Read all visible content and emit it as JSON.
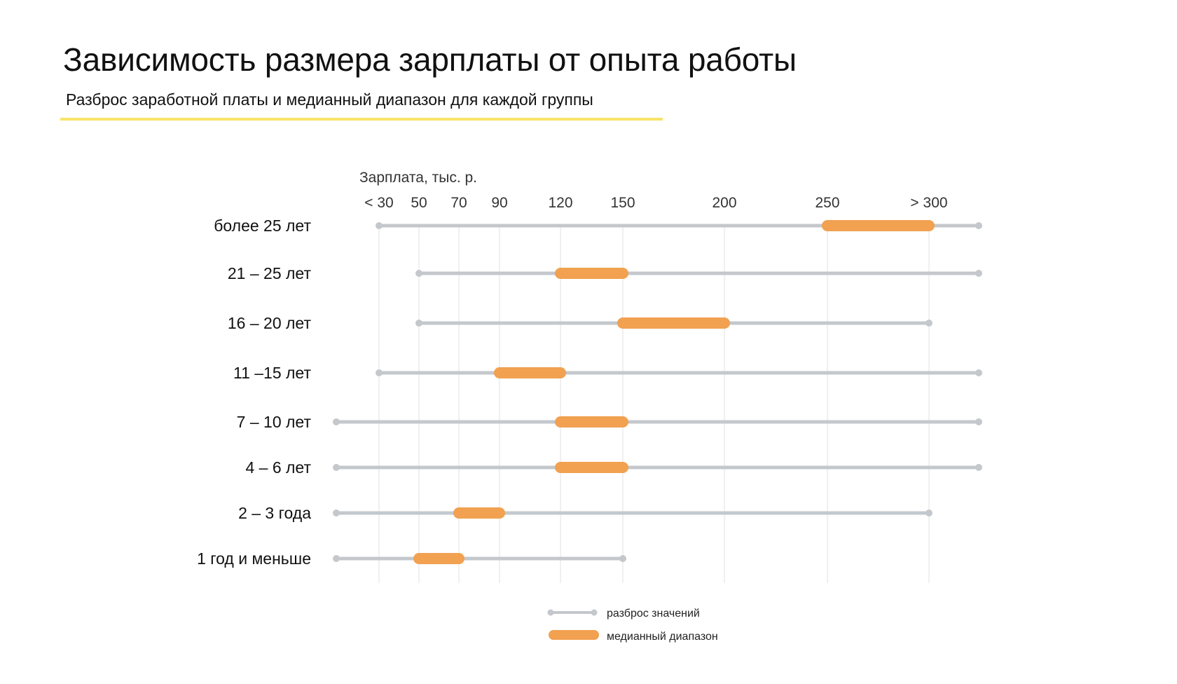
{
  "page": {
    "title": "Зависимость размера зарплаты от опыта работы",
    "subtitle": "Разброс заработной платы и медианный диапазон для каждой группы"
  },
  "chart_data": {
    "type": "range",
    "xlabel": "Зарплата, тыс. р.",
    "ticks": [
      {
        "label": "< 30",
        "value": 30
      },
      {
        "label": "50",
        "value": 50
      },
      {
        "label": "70",
        "value": 70
      },
      {
        "label": "90",
        "value": 90
      },
      {
        "label": "120",
        "value": 120
      },
      {
        "label": "150",
        "value": 150
      },
      {
        "label": "200",
        "value": 200
      },
      {
        "label": "250",
        "value": 250
      },
      {
        "label": "> 300",
        "value": 300
      }
    ],
    "grid": true,
    "legend": {
      "placement": "bottom",
      "items": [
        {
          "label": "разброс значений",
          "kind": "range",
          "color": "#c4c8cc"
        },
        {
          "label": "медианный диапазон",
          "kind": "median",
          "color": "#f1a150"
        }
      ]
    },
    "colors": {
      "range": "#c4c8cc",
      "median": "#f1a150",
      "grid": "#ececec"
    },
    "series": [
      {
        "label": "более 25 лет",
        "range": [
          30,
          350
        ],
        "median": [
          250,
          300
        ]
      },
      {
        "label": "21 – 25 лет",
        "range": [
          50,
          350
        ],
        "median": [
          120,
          150
        ]
      },
      {
        "label": "16 – 20 лет",
        "range": [
          50,
          300
        ],
        "median": [
          150,
          200
        ]
      },
      {
        "label": "11 –15 лет",
        "range": [
          30,
          350
        ],
        "median": [
          90,
          120
        ]
      },
      {
        "label": "7 – 10 лет",
        "range": [
          10,
          350
        ],
        "median": [
          120,
          150
        ]
      },
      {
        "label": "4 – 6 лет",
        "range": [
          10,
          350
        ],
        "median": [
          120,
          150
        ]
      },
      {
        "label": "2 – 3 года",
        "range": [
          10,
          300
        ],
        "median": [
          70,
          90
        ]
      },
      {
        "label": "1 год и меньше",
        "range": [
          10,
          150
        ],
        "median": [
          50,
          70
        ]
      }
    ]
  }
}
